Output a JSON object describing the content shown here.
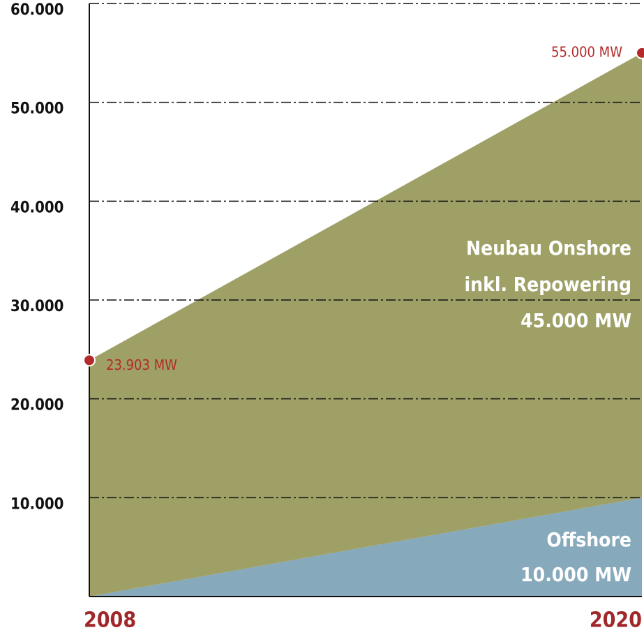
{
  "chart_data": {
    "type": "stacked_area",
    "categories": [
      "2008",
      "2020"
    ],
    "series": [
      {
        "name": "Offshore",
        "color": "#87a9bc",
        "values": [
          0,
          10000
        ],
        "value_labels": [
          null,
          "10.000 MW"
        ]
      },
      {
        "name": "Neubau Onshore\ninkl. Repowering",
        "color": "#9ea066",
        "values": [
          23903,
          45000
        ],
        "value_labels": [
          "23.903 MW",
          "45.000 MW"
        ]
      }
    ],
    "annotations": [
      {
        "text": "55.000 MW",
        "x": "2020",
        "y": 55000
      }
    ],
    "marker_color": "#b52a2a",
    "ylim": [
      0,
      60000
    ],
    "yticks": [
      {
        "value": 10000,
        "label": "10.000"
      },
      {
        "value": 20000,
        "label": "20.000"
      },
      {
        "value": 30000,
        "label": "30.000"
      },
      {
        "value": 40000,
        "label": "40.000"
      },
      {
        "value": 50000,
        "label": "50.000"
      },
      {
        "value": 60000,
        "label": "60.000"
      }
    ],
    "grid": true
  }
}
